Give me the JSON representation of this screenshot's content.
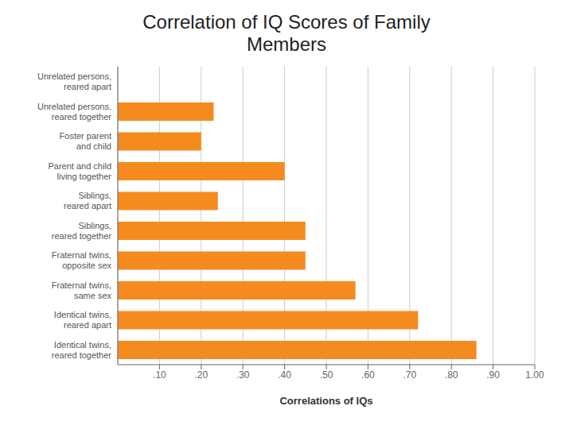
{
  "chart_data": {
    "type": "bar",
    "orientation": "horizontal",
    "title": "Correlation of IQ Scores of Family\nMembers",
    "categories": [
      "Unrelated persons,\nreared apart",
      "Unrelated persons,\nreared together",
      "Foster parent\nand child",
      "Parent and child\nliving together",
      "Siblings,\nreared apart",
      "Siblings,\nreared together",
      "Fraternal twins,\nopposite sex",
      "Fraternal twins,\nsame sex",
      "Identical twins,\nreared apart",
      "Identical twins,\nreared together"
    ],
    "values": [
      0.0,
      0.23,
      0.2,
      0.4,
      0.24,
      0.45,
      0.45,
      0.57,
      0.72,
      0.86
    ],
    "color": "#F58B1F",
    "xlabel": "Correlations of IQs",
    "xlim": [
      0,
      1.0
    ],
    "xticks": [
      {
        "value": 0.1,
        "label": ".10"
      },
      {
        "value": 0.2,
        "label": ".20"
      },
      {
        "value": 0.3,
        "label": ".30"
      },
      {
        "value": 0.4,
        "label": ".40"
      },
      {
        "value": 0.5,
        "label": ".50"
      },
      {
        "value": 0.6,
        "label": ".60"
      },
      {
        "value": 0.7,
        "label": ".70"
      },
      {
        "value": 0.8,
        "label": ".80"
      },
      {
        "value": 0.9,
        "label": ".90"
      },
      {
        "value": 1.0,
        "label": "1.00"
      }
    ],
    "grid": true
  }
}
